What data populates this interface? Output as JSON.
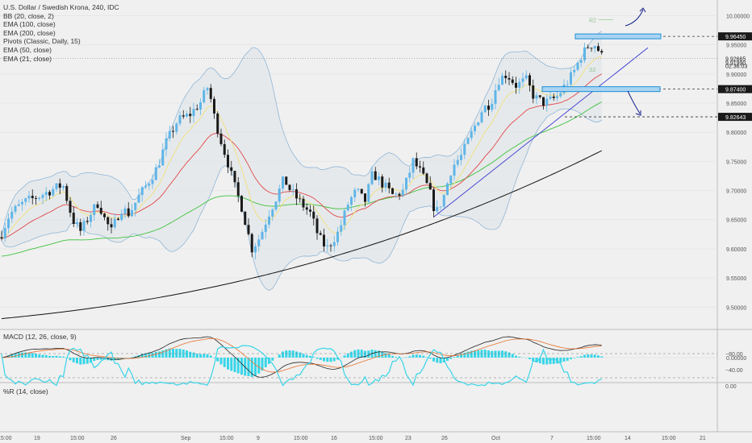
{
  "legend": {
    "title": "U.S. Dollar / Swedish Krona, 240, IDC",
    "bb": "BB (20, close, 2)",
    "ema100": "EMA (100, close)",
    "ema200": "EMA (200, close)",
    "pivots": "Pivots (Classic, Daily, 15)",
    "ema50": "EMA (50, close)",
    "ema21": "EMA (21, close)"
  },
  "macd_label": "MACD (12, 26, close, 9)",
  "rsi_label": "%R (14, close)",
  "colors": {
    "up": "#5fb5e8",
    "down": "#1a1a1a",
    "ema21": "#f0e07a",
    "ema50": "#e0484a",
    "ema100": "#3ec23e",
    "ema200": "#111111",
    "bb": "#8fb6d8",
    "trend": "#3a3ad0",
    "zone": "#1e8fd6",
    "macd": "#222222",
    "signal": "#e8732e",
    "hist": "#37d5e8",
    "wr": "#37d5e8"
  },
  "chart_data": {
    "type": "candlestick",
    "title": "U.S. Dollar / Swedish Krona, 240, IDC",
    "y_axis": {
      "range": [
        9.47,
        10.02
      ],
      "ticks": [
        "10.00000",
        "9.95000",
        "9.90000",
        "9.85000",
        "9.80000",
        "9.75000",
        "9.70000",
        "9.65000",
        "9.60000",
        "9.55000",
        "9.50000"
      ]
    },
    "price_labels": [
      {
        "value": 9.9645,
        "text": "9.96450",
        "dark": true
      },
      {
        "value": 9.92665,
        "text": "9.92665",
        "dark": false
      },
      {
        "value": 9.9199,
        "text": "9.91990",
        "dark": false
      },
      {
        "value": 9.874,
        "text": "9.87400",
        "dark": true
      },
      {
        "value": 9.82643,
        "text": "9.82643",
        "dark": true
      }
    ],
    "countdown": "02:36:03",
    "levels": [
      9.9645,
      9.874,
      9.82643
    ],
    "pivot_labels": [
      "R2",
      "S2"
    ],
    "x_ticks": [
      "15:00",
      "19",
      "15:00",
      "26",
      "Sep",
      "15:00",
      "9",
      "15:00",
      "16",
      "15:00",
      "23",
      "26",
      "Oct",
      "7",
      "15:00",
      "14",
      "15:00",
      "21"
    ],
    "macd_ticks": [
      "0.00000"
    ],
    "wr_ticks": [
      "0.00",
      "−40.00",
      "−80.00"
    ],
    "wr_range": [
      0,
      -100
    ]
  }
}
